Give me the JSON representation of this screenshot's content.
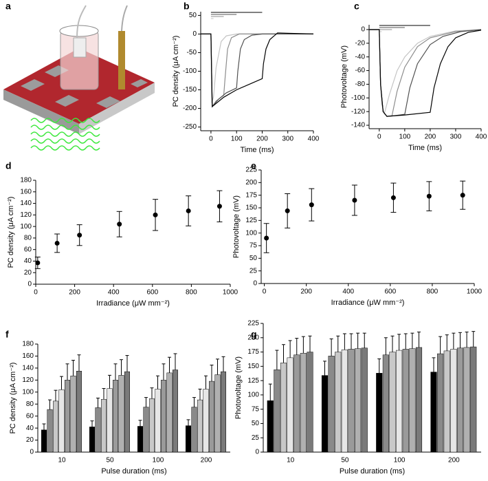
{
  "illustration": {
    "panel": "a"
  },
  "chart_data": [
    {
      "type": "line",
      "panel": "b",
      "xlabel": "Time (ms)",
      "ylabel": "PC density (μA cm⁻²)",
      "xlim": [
        -40,
        400
      ],
      "ylim": [
        -260,
        60
      ],
      "xticks": [
        0,
        100,
        200,
        300,
        400
      ],
      "yticks": [
        50,
        0,
        -50,
        -100,
        -150,
        -200,
        -250
      ],
      "pulses": [
        10,
        50,
        100,
        200
      ],
      "series": [
        {
          "color": "#c4c4c4",
          "x": [
            -40,
            0,
            3,
            10,
            20,
            40,
            60,
            100,
            400
          ],
          "values": [
            0,
            0,
            -185,
            -170,
            -90,
            -20,
            -5,
            0,
            0
          ]
        },
        {
          "color": "#8c8c8c",
          "x": [
            -40,
            0,
            5,
            20,
            50,
            55,
            65,
            80,
            110,
            150,
            400
          ],
          "values": [
            0,
            0,
            -195,
            -180,
            -165,
            -120,
            -40,
            -10,
            0,
            0,
            0
          ]
        },
        {
          "color": "#505050",
          "x": [
            -40,
            0,
            5,
            30,
            60,
            100,
            105,
            115,
            130,
            160,
            200,
            400
          ],
          "values": [
            0,
            0,
            -195,
            -175,
            -158,
            -145,
            -100,
            -40,
            -15,
            -3,
            0,
            0
          ]
        },
        {
          "color": "#000000",
          "x": [
            -40,
            0,
            5,
            50,
            100,
            150,
            200,
            205,
            215,
            230,
            260,
            300,
            400
          ],
          "values": [
            0,
            0,
            -195,
            -170,
            -150,
            -135,
            -120,
            -80,
            -40,
            -15,
            3,
            2,
            0
          ]
        }
      ]
    },
    {
      "type": "line",
      "panel": "c",
      "xlabel": "Time (ms)",
      "ylabel": "Photovoltage (mV)",
      "xlim": [
        -40,
        400
      ],
      "ylim": [
        -145,
        7
      ],
      "xticks": [
        0,
        100,
        200,
        300,
        400
      ],
      "yticks": [
        0,
        -20,
        -40,
        -60,
        -80,
        -100,
        -120,
        -140
      ],
      "pulses": [
        10,
        50,
        100,
        200
      ],
      "series": [
        {
          "color": "#c4c4c4",
          "x": [
            -40,
            0,
            5,
            10,
            20,
            40,
            70,
            100,
            150,
            200,
            300,
            400
          ],
          "values": [
            0,
            0,
            -80,
            -110,
            -123,
            -95,
            -60,
            -40,
            -20,
            -10,
            -2,
            0
          ]
        },
        {
          "color": "#8c8c8c",
          "x": [
            -40,
            0,
            5,
            15,
            30,
            50,
            70,
            100,
            150,
            200,
            300,
            400
          ],
          "values": [
            0,
            0,
            -80,
            -120,
            -127,
            -126,
            -90,
            -55,
            -25,
            -12,
            -3,
            0
          ]
        },
        {
          "color": "#505050",
          "x": [
            -40,
            0,
            5,
            15,
            30,
            60,
            100,
            120,
            150,
            200,
            250,
            320,
            400
          ],
          "values": [
            0,
            0,
            -80,
            -120,
            -127,
            -126,
            -124,
            -85,
            -50,
            -22,
            -10,
            -3,
            0
          ]
        },
        {
          "color": "#000000",
          "x": [
            -40,
            0,
            5,
            15,
            30,
            100,
            200,
            215,
            240,
            270,
            300,
            350,
            400
          ],
          "values": [
            0,
            0,
            -80,
            -120,
            -127,
            -125,
            -121,
            -85,
            -50,
            -25,
            -12,
            -4,
            -1
          ]
        }
      ]
    },
    {
      "type": "scatter",
      "panel": "d",
      "xlabel": "Irradiance (μW mm⁻²)",
      "ylabel": "PC density (μA cm⁻²)",
      "xlim": [
        0,
        1000
      ],
      "ylim": [
        0,
        180
      ],
      "xticks": [
        0,
        200,
        400,
        600,
        800,
        1000
      ],
      "yticks": [
        0,
        20,
        40,
        60,
        80,
        100,
        120,
        140,
        160,
        180
      ],
      "x": [
        10,
        110,
        225,
        430,
        615,
        785,
        945
      ],
      "values": [
        37,
        71,
        85,
        104,
        120,
        127,
        135
      ],
      "errors": [
        10,
        16,
        18,
        22,
        27,
        26,
        27
      ],
      "color": "#000000"
    },
    {
      "type": "scatter",
      "panel": "e",
      "xlabel": "Irradiance (μW mm⁻²)",
      "ylabel": "Photovoltage (mV)",
      "xlim": [
        -15,
        1000
      ],
      "ylim": [
        0,
        225
      ],
      "xticks": [
        0,
        200,
        400,
        600,
        800,
        1000
      ],
      "yticks": [
        0,
        25,
        50,
        75,
        100,
        125,
        150,
        175,
        200,
        225
      ],
      "x": [
        10,
        110,
        225,
        430,
        615,
        785,
        945
      ],
      "values": [
        90,
        144,
        156,
        165,
        170,
        173,
        175
      ],
      "errors": [
        29,
        34,
        32,
        30,
        29,
        29,
        28
      ],
      "color": "#000000"
    },
    {
      "type": "bar",
      "panel": "f",
      "xlabel": "Pulse duration (ms)",
      "ylabel": "PC density (μA cm⁻²)",
      "ylim": [
        0,
        180
      ],
      "yticks": [
        0,
        20,
        40,
        60,
        80,
        100,
        120,
        140,
        160,
        180
      ],
      "categories": [
        "10",
        "50",
        "100",
        "200"
      ],
      "series": [
        {
          "color": "#000000",
          "values": [
            37,
            42,
            43,
            44
          ],
          "errors": [
            10,
            10,
            10,
            10
          ]
        },
        {
          "color": "#8a8a8a",
          "values": [
            71,
            74,
            75,
            75
          ],
          "errors": [
            16,
            16,
            16,
            16
          ]
        },
        {
          "color": "#c8c8c8",
          "values": [
            85,
            88,
            89,
            87
          ],
          "errors": [
            18,
            18,
            18,
            18
          ]
        },
        {
          "color": "#e6e6e6",
          "values": [
            104,
            106,
            105,
            105
          ],
          "errors": [
            22,
            22,
            22,
            22
          ]
        },
        {
          "color": "#9a9a9a",
          "values": [
            120,
            120,
            120,
            118
          ],
          "errors": [
            27,
            27,
            27,
            27
          ]
        },
        {
          "color": "#b0b0b0",
          "values": [
            127,
            128,
            132,
            129
          ],
          "errors": [
            26,
            26,
            26,
            26
          ]
        },
        {
          "color": "#7a7a7a",
          "values": [
            135,
            134,
            137,
            134
          ],
          "errors": [
            27,
            27,
            27,
            25
          ]
        }
      ]
    },
    {
      "type": "bar",
      "panel": "g",
      "xlabel": "Pulse duration (ms)",
      "ylabel": "Photovoltage (mV)",
      "ylim": [
        0,
        225
      ],
      "yticks": [
        0,
        25,
        50,
        75,
        100,
        125,
        150,
        175,
        200,
        225
      ],
      "categories": [
        "10",
        "50",
        "100",
        "200"
      ],
      "series": [
        {
          "color": "#000000",
          "values": [
            90,
            134,
            138,
            140
          ],
          "errors": [
            29,
            25,
            25,
            25
          ]
        },
        {
          "color": "#8a8a8a",
          "values": [
            144,
            168,
            170,
            172
          ],
          "errors": [
            34,
            30,
            30,
            30
          ]
        },
        {
          "color": "#c8c8c8",
          "values": [
            156,
            175,
            175,
            177
          ],
          "errors": [
            32,
            28,
            28,
            28
          ]
        },
        {
          "color": "#e6e6e6",
          "values": [
            165,
            179,
            178,
            180
          ],
          "errors": [
            30,
            28,
            28,
            28
          ]
        },
        {
          "color": "#9a9a9a",
          "values": [
            170,
            180,
            180,
            182
          ],
          "errors": [
            29,
            27,
            27,
            27
          ]
        },
        {
          "color": "#b0b0b0",
          "values": [
            173,
            181,
            181,
            183
          ],
          "errors": [
            29,
            27,
            27,
            27
          ]
        },
        {
          "color": "#7a7a7a",
          "values": [
            175,
            182,
            183,
            184
          ],
          "errors": [
            28,
            26,
            27,
            27
          ]
        }
      ]
    }
  ]
}
